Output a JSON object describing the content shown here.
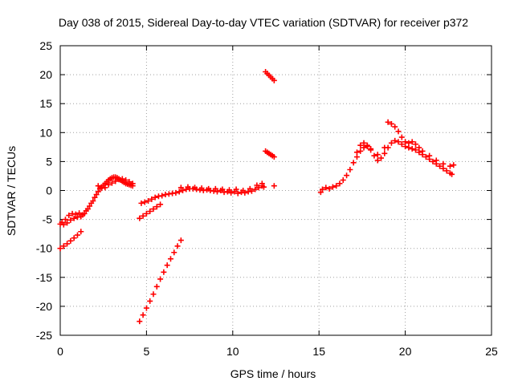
{
  "chart_data": {
    "type": "scatter",
    "title": "Day 038 of 2015, Sidereal Day-to-day VTEC variation (SDTVAR) for receiver p372",
    "xlabel": "GPS time / hours",
    "ylabel": "SDTVAR / TECUs",
    "xlim": [
      0,
      25
    ],
    "ylim": [
      -25,
      25
    ],
    "xticks": [
      "0",
      "5",
      "10",
      "15",
      "20",
      "25"
    ],
    "yticks": [
      "-25",
      "-20",
      "-15",
      "-10",
      "-5",
      "0",
      "5",
      "10",
      "15",
      "20",
      "25"
    ],
    "grid": true,
    "legend": "none",
    "marker": "plus",
    "color": "#ff0000",
    "series": [
      {
        "points": [
          [
            0.0,
            -5.8
          ],
          [
            0.1,
            -5.5
          ],
          [
            0.2,
            -5.9
          ],
          [
            0.3,
            -5.0
          ],
          [
            0.4,
            -5.6
          ],
          [
            0.5,
            -4.3
          ],
          [
            0.6,
            -5.1
          ],
          [
            0.7,
            -4.0
          ],
          [
            0.8,
            -4.8
          ],
          [
            0.9,
            -4.1
          ],
          [
            1.0,
            -4.6
          ],
          [
            1.1,
            -3.9
          ],
          [
            1.2,
            -4.5
          ],
          [
            1.3,
            -4.2
          ],
          [
            1.4,
            -4.0
          ],
          [
            1.5,
            -3.5
          ],
          [
            1.6,
            -3.2
          ],
          [
            1.7,
            -2.7
          ],
          [
            1.8,
            -2.2
          ],
          [
            1.9,
            -1.8
          ],
          [
            2.0,
            -1.2
          ],
          [
            2.1,
            -0.7
          ],
          [
            2.2,
            -0.2
          ],
          [
            2.3,
            0.3
          ],
          [
            2.4,
            0.6
          ],
          [
            2.5,
            0.9
          ],
          [
            2.6,
            1.2
          ],
          [
            2.7,
            1.5
          ],
          [
            2.8,
            1.8
          ],
          [
            2.9,
            2.0
          ],
          [
            3.0,
            2.2
          ],
          [
            3.1,
            2.3
          ],
          [
            3.2,
            2.3
          ],
          [
            3.3,
            2.2
          ],
          [
            3.4,
            2.0
          ],
          [
            3.5,
            1.8
          ],
          [
            3.6,
            1.6
          ],
          [
            3.7,
            1.4
          ],
          [
            3.8,
            1.2
          ],
          [
            3.9,
            1.1
          ],
          [
            4.0,
            1.0
          ],
          [
            4.1,
            0.9
          ],
          [
            4.2,
            0.8
          ],
          [
            0.0,
            -10.0
          ],
          [
            0.2,
            -9.6
          ],
          [
            0.4,
            -9.2
          ],
          [
            0.6,
            -8.7
          ],
          [
            0.8,
            -8.2
          ],
          [
            1.0,
            -7.7
          ],
          [
            1.2,
            -7.1
          ]
        ]
      },
      {
        "points": [
          [
            2.2,
            0.8
          ],
          [
            2.4,
            0.4
          ],
          [
            2.6,
            0.5
          ],
          [
            2.8,
            1.0
          ],
          [
            3.0,
            1.3
          ],
          [
            3.2,
            1.6
          ],
          [
            3.4,
            1.9
          ],
          [
            3.6,
            2.0
          ],
          [
            3.8,
            1.8
          ],
          [
            4.0,
            1.5
          ],
          [
            4.2,
            1.2
          ]
        ]
      },
      {
        "points": [
          [
            4.7,
            -2.2
          ],
          [
            4.9,
            -2.0
          ],
          [
            5.1,
            -1.8
          ],
          [
            5.3,
            -1.5
          ],
          [
            5.5,
            -1.2
          ],
          [
            5.7,
            -1.0
          ],
          [
            5.9,
            -0.9
          ],
          [
            6.1,
            -0.7
          ],
          [
            6.3,
            -0.6
          ],
          [
            6.5,
            -0.5
          ],
          [
            6.7,
            -0.4
          ],
          [
            6.9,
            -0.2
          ],
          [
            7.1,
            0.0
          ],
          [
            7.3,
            0.2
          ],
          [
            7.5,
            0.3
          ],
          [
            7.7,
            0.3
          ],
          [
            7.9,
            0.2
          ],
          [
            8.1,
            0.1
          ],
          [
            8.3,
            0.0
          ],
          [
            8.5,
            0.1
          ],
          [
            8.7,
            0.0
          ],
          [
            8.9,
            -0.1
          ],
          [
            9.1,
            -0.2
          ],
          [
            9.3,
            0.0
          ],
          [
            9.5,
            -0.3
          ],
          [
            9.7,
            -0.2
          ],
          [
            9.9,
            -0.4
          ],
          [
            10.1,
            -0.2
          ],
          [
            10.3,
            -0.5
          ],
          [
            10.5,
            -0.3
          ],
          [
            10.7,
            -0.4
          ],
          [
            10.9,
            -0.2
          ],
          [
            11.1,
            -0.1
          ],
          [
            11.3,
            0.2
          ],
          [
            11.5,
            0.5
          ],
          [
            11.7,
            0.8
          ],
          [
            11.8,
            0.6
          ],
          [
            7.0,
            0.5
          ],
          [
            7.4,
            0.6
          ],
          [
            7.8,
            0.5
          ],
          [
            8.2,
            0.4
          ],
          [
            8.6,
            0.3
          ],
          [
            9.0,
            0.3
          ],
          [
            9.4,
            0.2
          ],
          [
            9.8,
            0.1
          ],
          [
            10.2,
            0.2
          ],
          [
            10.6,
            0.0
          ],
          [
            11.0,
            0.3
          ],
          [
            11.4,
            0.9
          ],
          [
            11.7,
            1.2
          ]
        ]
      },
      {
        "points": [
          [
            4.6,
            -4.8
          ],
          [
            4.8,
            -4.4
          ],
          [
            5.0,
            -4.0
          ],
          [
            5.2,
            -3.6
          ],
          [
            5.4,
            -3.2
          ],
          [
            5.6,
            -2.8
          ],
          [
            5.8,
            -2.4
          ]
        ]
      },
      {
        "points": [
          [
            4.6,
            -22.6
          ],
          [
            4.8,
            -21.5
          ],
          [
            5.0,
            -20.3
          ],
          [
            5.2,
            -19.1
          ],
          [
            5.4,
            -17.9
          ],
          [
            5.6,
            -16.6
          ],
          [
            5.8,
            -15.3
          ],
          [
            6.0,
            -14.1
          ],
          [
            6.2,
            -12.9
          ],
          [
            6.4,
            -11.8
          ],
          [
            6.6,
            -10.7
          ],
          [
            6.8,
            -9.6
          ],
          [
            7.0,
            -8.6
          ]
        ]
      },
      {
        "points": [
          [
            11.9,
            20.5
          ],
          [
            12.0,
            20.2
          ],
          [
            12.1,
            19.9
          ],
          [
            12.2,
            19.6
          ],
          [
            12.3,
            19.3
          ],
          [
            12.4,
            19.0
          ]
        ]
      },
      {
        "points": [
          [
            11.9,
            6.8
          ],
          [
            12.0,
            6.6
          ],
          [
            12.1,
            6.4
          ],
          [
            12.2,
            6.2
          ],
          [
            12.3,
            6.0
          ],
          [
            12.4,
            5.8
          ]
        ]
      },
      {
        "points": [
          [
            12.4,
            0.8
          ]
        ]
      },
      {
        "points": [
          [
            15.1,
            -0.3
          ],
          [
            15.2,
            0.2
          ],
          [
            15.4,
            0.5
          ],
          [
            15.6,
            0.3
          ],
          [
            15.8,
            0.6
          ],
          [
            16.0,
            0.8
          ],
          [
            16.2,
            1.2
          ],
          [
            16.4,
            1.8
          ],
          [
            16.6,
            2.6
          ],
          [
            16.8,
            3.6
          ],
          [
            17.0,
            4.8
          ],
          [
            17.2,
            5.8
          ],
          [
            17.4,
            6.8
          ],
          [
            17.6,
            7.4
          ],
          [
            17.8,
            7.6
          ],
          [
            18.0,
            7.0
          ],
          [
            18.2,
            6.0
          ],
          [
            18.4,
            5.2
          ],
          [
            18.6,
            5.6
          ],
          [
            18.8,
            6.4
          ],
          [
            19.0,
            7.4
          ],
          [
            19.2,
            8.2
          ],
          [
            19.4,
            8.6
          ],
          [
            19.6,
            8.4
          ],
          [
            19.8,
            8.0
          ],
          [
            20.0,
            7.6
          ],
          [
            20.2,
            7.4
          ],
          [
            20.4,
            7.2
          ],
          [
            20.6,
            7.0
          ],
          [
            20.8,
            6.6
          ],
          [
            21.0,
            6.2
          ],
          [
            21.2,
            5.8
          ],
          [
            21.4,
            5.4
          ],
          [
            21.6,
            5.0
          ],
          [
            21.8,
            4.6
          ],
          [
            22.0,
            4.2
          ],
          [
            22.2,
            3.8
          ],
          [
            22.4,
            3.4
          ],
          [
            22.6,
            3.0
          ],
          [
            22.7,
            2.8
          ]
        ]
      },
      {
        "points": [
          [
            17.2,
            6.6
          ],
          [
            17.4,
            7.8
          ],
          [
            17.6,
            8.2
          ],
          [
            17.8,
            7.8
          ],
          [
            18.0,
            7.2
          ],
          [
            18.4,
            6.2
          ],
          [
            18.8,
            7.4
          ],
          [
            19.0,
            11.8
          ],
          [
            19.2,
            11.5
          ],
          [
            19.4,
            11.0
          ],
          [
            19.6,
            10.2
          ],
          [
            19.8,
            9.2
          ],
          [
            20.0,
            8.4
          ],
          [
            20.2,
            8.2
          ],
          [
            20.4,
            8.4
          ],
          [
            20.6,
            8.0
          ],
          [
            20.8,
            7.4
          ],
          [
            21.0,
            6.8
          ],
          [
            21.4,
            6.0
          ],
          [
            21.8,
            5.2
          ],
          [
            22.2,
            4.6
          ],
          [
            22.6,
            4.2
          ],
          [
            22.8,
            4.4
          ]
        ]
      }
    ]
  }
}
